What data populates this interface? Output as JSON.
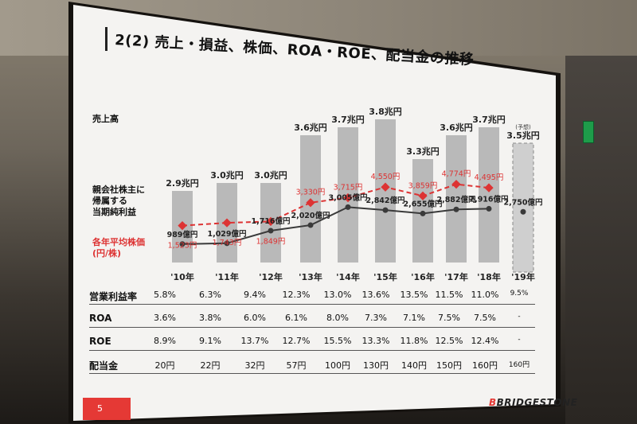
{
  "slide": {
    "title": "2(2) 売上・損益、株価、ROA・ROE、配当金の推移",
    "labels": {
      "revenue": "売上高",
      "net_income_l1": "親会社株主に",
      "net_income_l2": "帰属する",
      "net_income_l3": "当期純利益",
      "stock_l1": "各年平均株価",
      "stock_l2": "(円/株)"
    },
    "years": [
      "'10年",
      "'11年",
      "'12年",
      "'13年",
      "'14年",
      "'15年",
      "'16年",
      "'17年",
      "'18年",
      "'19年"
    ],
    "forecast_label": "(予想)",
    "revenue": [
      "2.9兆円",
      "3.0兆円",
      "3.0兆円",
      "3.6兆円",
      "3.7兆円",
      "3.8兆円",
      "3.3兆円",
      "3.6兆円",
      "3.7兆円",
      "3.5兆円"
    ],
    "net_income": [
      "989億円",
      "1,029億円",
      "1,716億円",
      "2,020億円",
      "3,005億円",
      "2,842億円",
      "2,655億円",
      "2,882億円",
      "2,916億円",
      "2,750億円"
    ],
    "stock_price": [
      "1,523円",
      "1,743円",
      "1,849円",
      "3,330円",
      "3,715円",
      "4,550円",
      "3,859円",
      "4,774円",
      "4,495円"
    ],
    "table": {
      "rows": [
        {
          "label": "営業利益率",
          "values": [
            "5.8%",
            "6.3%",
            "9.4%",
            "12.3%",
            "13.0%",
            "13.6%",
            "13.5%",
            "11.5%",
            "11.0%",
            "9.5%"
          ]
        },
        {
          "label": "ROA",
          "values": [
            "3.6%",
            "3.8%",
            "6.0%",
            "6.1%",
            "8.0%",
            "7.3%",
            "7.1%",
            "7.5%",
            "7.5%",
            "-"
          ]
        },
        {
          "label": "ROE",
          "values": [
            "8.9%",
            "9.1%",
            "13.7%",
            "12.7%",
            "15.5%",
            "13.3%",
            "11.8%",
            "12.5%",
            "12.4%",
            "-"
          ]
        },
        {
          "label": "配当金",
          "values": [
            "20円",
            "22円",
            "32円",
            "57円",
            "100円",
            "130円",
            "140円",
            "150円",
            "160円",
            "160円"
          ]
        }
      ]
    },
    "page_number": "5",
    "brand": "BRIDGESTONE"
  },
  "chart_data": {
    "type": "bar",
    "categories": [
      "'10年",
      "'11年",
      "'12年",
      "'13年",
      "'14年",
      "'15年",
      "'16年",
      "'17年",
      "'18年",
      "'19年"
    ],
    "series": [
      {
        "name": "売上高",
        "unit": "兆円",
        "values": [
          2.9,
          3.0,
          3.0,
          3.6,
          3.7,
          3.8,
          3.3,
          3.6,
          3.7,
          3.5
        ]
      },
      {
        "name": "親会社株主に帰属する当期純利益",
        "unit": "億円",
        "values": [
          989,
          1029,
          1716,
          2020,
          3005,
          2842,
          2655,
          2882,
          2916,
          2750
        ]
      },
      {
        "name": "各年平均株価",
        "unit": "円/株",
        "values": [
          1523,
          1743,
          1849,
          3330,
          3715,
          4550,
          3859,
          4774,
          4495,
          null
        ]
      }
    ]
  },
  "colors": {
    "accent": "#e53935",
    "bar": "#b9b9b9",
    "forecast_bar": "#cfcfcf",
    "income_line": "#3a3a3a",
    "stock_line": "#d33"
  }
}
